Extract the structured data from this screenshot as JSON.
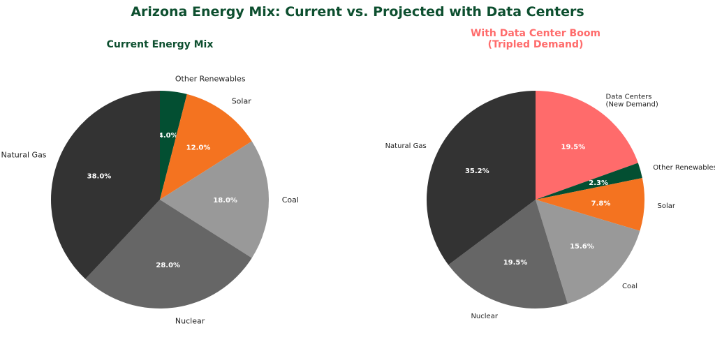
{
  "title": "Arizona Energy Mix: Current vs. Projected with Data Centers",
  "colors": {
    "title": "#0d4f2f",
    "subtitle_left": "#0d4f2f",
    "subtitle_right": "#ff6b6b"
  },
  "chart_data": [
    {
      "type": "pie",
      "title": "Current Energy Mix",
      "start_angle_deg": 90,
      "direction": "clockwise",
      "slices": [
        {
          "label": "Other Renewables",
          "value": 4.0,
          "pct_label": "4.0%",
          "color": "#034f32"
        },
        {
          "label": "Solar",
          "value": 12.0,
          "pct_label": "12.0%",
          "color": "#f47320"
        },
        {
          "label": "Coal",
          "value": 18.0,
          "pct_label": "18.0%",
          "color": "#999999"
        },
        {
          "label": "Nuclear",
          "value": 28.0,
          "pct_label": "28.0%",
          "color": "#666666"
        },
        {
          "label": "Natural Gas",
          "value": 38.0,
          "pct_label": "38.0%",
          "color": "#333333"
        }
      ]
    },
    {
      "type": "pie",
      "title": "With Data Center Boom\n(Tripled Demand)",
      "start_angle_deg": 90,
      "direction": "clockwise",
      "slices": [
        {
          "label": "Data Centers\n(New Demand)",
          "value": 19.5,
          "pct_label": "19.5%",
          "color": "#ff6b6b"
        },
        {
          "label": "Other Renewables",
          "value": 2.3,
          "pct_label": "2.3%",
          "color": "#034f32"
        },
        {
          "label": "Solar",
          "value": 7.8,
          "pct_label": "7.8%",
          "color": "#f47320"
        },
        {
          "label": "Coal",
          "value": 15.6,
          "pct_label": "15.6%",
          "color": "#999999"
        },
        {
          "label": "Nuclear",
          "value": 19.5,
          "pct_label": "19.5%",
          "color": "#666666"
        },
        {
          "label": "Natural Gas",
          "value": 35.2,
          "pct_label": "35.2%",
          "color": "#333333"
        }
      ]
    }
  ]
}
